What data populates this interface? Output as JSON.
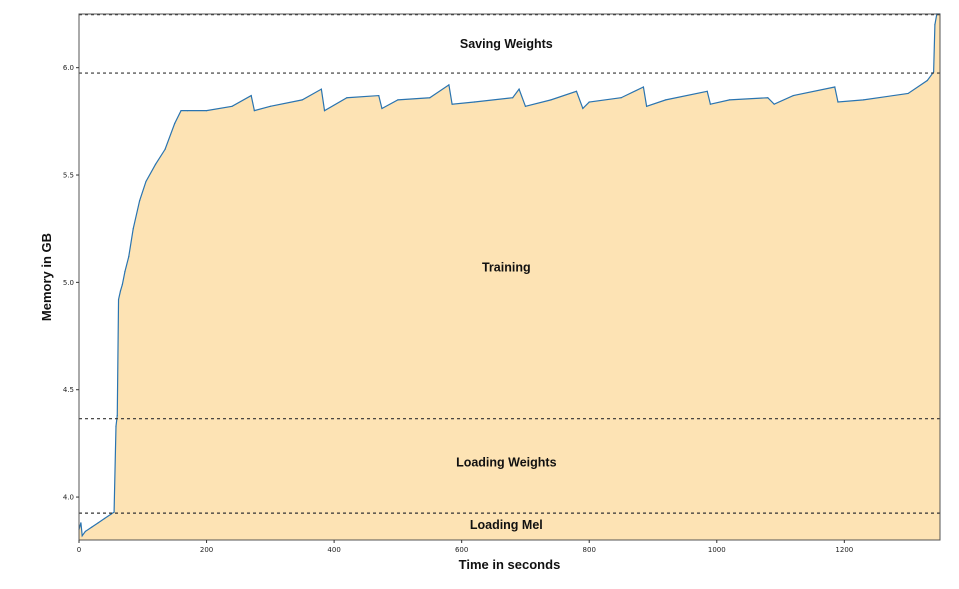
{
  "chart_data": {
    "type": "area",
    "title": "",
    "xlabel": "Time in seconds",
    "ylabel": "Memory in GB",
    "xlim": [
      0,
      1350
    ],
    "ylim": [
      3.8,
      6.25
    ],
    "x_ticks": [
      0,
      200,
      400,
      600,
      800,
      1000,
      1200
    ],
    "y_ticks": [
      4.0,
      4.5,
      5.0,
      5.5,
      6.0
    ],
    "x_tick_labels": [
      "0",
      "200",
      "400",
      "600",
      "800",
      "1000",
      "1200"
    ],
    "y_tick_labels": [
      "4.0",
      "4.5",
      "5.0",
      "5.5",
      "6.0"
    ],
    "grid": false,
    "fill_color": "#fde3b4",
    "line_color": "#2a74b0",
    "series": [
      {
        "x": [
          0,
          3,
          5,
          10,
          20,
          30,
          40,
          50,
          55,
          58,
          60,
          62,
          65,
          68,
          72,
          78,
          85,
          95,
          105,
          120,
          135,
          150,
          160,
          170,
          200,
          240,
          270,
          275,
          300,
          350,
          380,
          385,
          420,
          470,
          475,
          500,
          550,
          580,
          585,
          620,
          680,
          690,
          700,
          740,
          780,
          790,
          800,
          850,
          885,
          890,
          920,
          985,
          990,
          1020,
          1080,
          1090,
          1120,
          1185,
          1190,
          1230,
          1300,
          1330,
          1340,
          1342,
          1345,
          1350
        ],
        "y": [
          3.85,
          3.88,
          3.82,
          3.84,
          3.86,
          3.88,
          3.9,
          3.92,
          3.93,
          4.33,
          4.38,
          4.92,
          4.96,
          4.99,
          5.05,
          5.12,
          5.25,
          5.38,
          5.47,
          5.55,
          5.62,
          5.74,
          5.8,
          5.8,
          5.8,
          5.82,
          5.87,
          5.8,
          5.82,
          5.85,
          5.9,
          5.8,
          5.86,
          5.87,
          5.81,
          5.85,
          5.86,
          5.92,
          5.83,
          5.84,
          5.86,
          5.9,
          5.82,
          5.85,
          5.89,
          5.81,
          5.84,
          5.86,
          5.91,
          5.82,
          5.85,
          5.89,
          5.83,
          5.85,
          5.86,
          5.83,
          5.87,
          5.91,
          5.84,
          5.85,
          5.88,
          5.94,
          5.98,
          6.2,
          6.25,
          6.25
        ]
      }
    ],
    "reference_lines": [
      {
        "y": 6.247
      },
      {
        "y": 5.975
      },
      {
        "y": 4.365
      },
      {
        "y": 3.925
      }
    ],
    "annotations": [
      {
        "text": "Saving Weights",
        "x": 670,
        "y": 6.11
      },
      {
        "text": "Training",
        "x": 670,
        "y": 5.07
      },
      {
        "text": "Loading Weights",
        "x": 670,
        "y": 4.16
      },
      {
        "text": "Loading Mel",
        "x": 670,
        "y": 3.87
      }
    ]
  }
}
